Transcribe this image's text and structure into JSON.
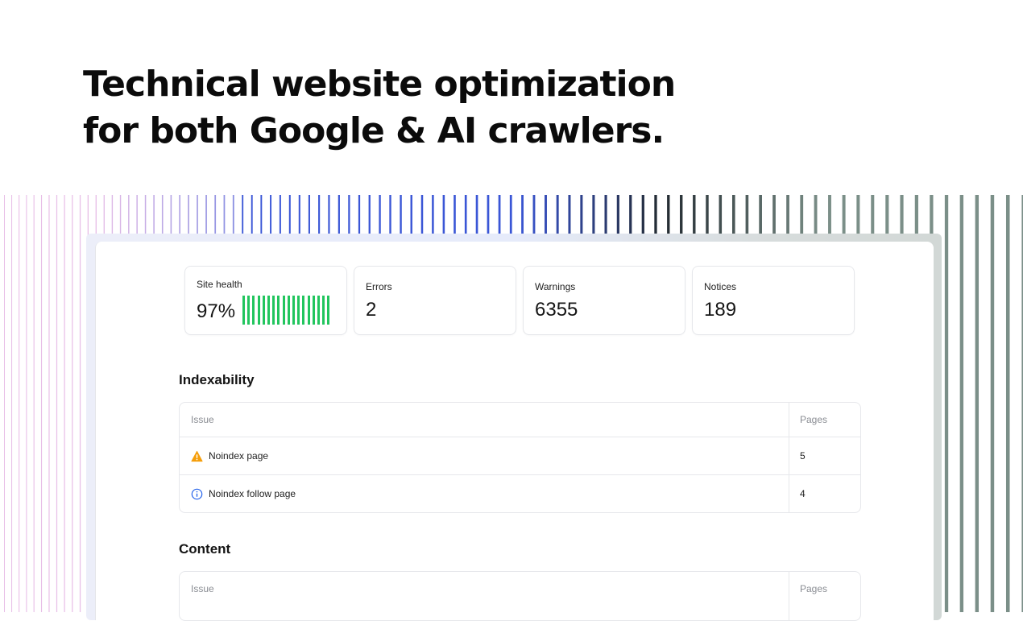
{
  "headline": {
    "line1": "Technical website optimization",
    "line2": "for both Google & AI crawlers."
  },
  "stats": {
    "site_health": {
      "label": "Site health",
      "value": "97%",
      "bar_color": "#22c55e"
    },
    "errors": {
      "label": "Errors",
      "value": "2"
    },
    "warnings": {
      "label": "Warnings",
      "value": "6355"
    },
    "notices": {
      "label": "Notices",
      "value": "189"
    }
  },
  "indexability": {
    "title": "Indexability",
    "columns": [
      "Issue",
      "Pages"
    ],
    "rows": [
      {
        "icon": "warning-icon",
        "issue": "Noindex page",
        "pages": "5"
      },
      {
        "icon": "info-icon",
        "issue": "Noindex follow page",
        "pages": "4"
      }
    ]
  },
  "content": {
    "title": "Content",
    "columns": [
      "Issue",
      "Pages"
    ]
  },
  "colors": {
    "warning": "#f59e0b",
    "info": "#2563eb",
    "stripes_pink": "#e0a8df",
    "stripes_blue": "#3a56d6",
    "stripes_dark": "#222a30",
    "stripes_gray": "#7b8f88"
  }
}
